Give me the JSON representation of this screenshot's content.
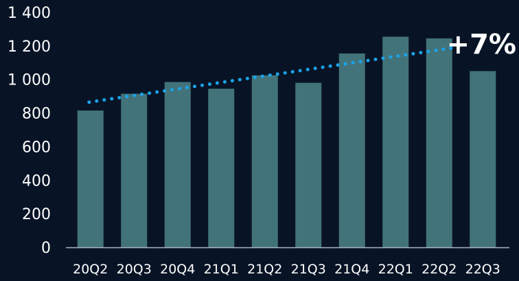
{
  "colors": {
    "background": "#081426",
    "bar": "#43737a",
    "trend": "#1aa3e8",
    "axis": "#a9b4c0",
    "text": "#ffffff"
  },
  "chart_data": {
    "type": "bar",
    "categories": [
      "20Q2",
      "20Q3",
      "20Q4",
      "21Q1",
      "21Q2",
      "21Q3",
      "21Q4",
      "22Q1",
      "22Q2",
      "22Q3"
    ],
    "values": [
      815,
      915,
      985,
      945,
      1025,
      980,
      1155,
      1255,
      1245,
      1050
    ],
    "trendline": {
      "style": "dotted",
      "start": 865,
      "end": 1195
    },
    "annotation": "+7%",
    "yticks": [
      "0",
      "200",
      "400",
      "600",
      "800",
      "1 000",
      "1 200",
      "1 400"
    ],
    "ytick_values": [
      0,
      200,
      400,
      600,
      800,
      1000,
      1200,
      1400
    ],
    "ylim": [
      0,
      1400
    ],
    "title": "",
    "xlabel": "",
    "ylabel": "",
    "grid": false,
    "legend": "none"
  }
}
